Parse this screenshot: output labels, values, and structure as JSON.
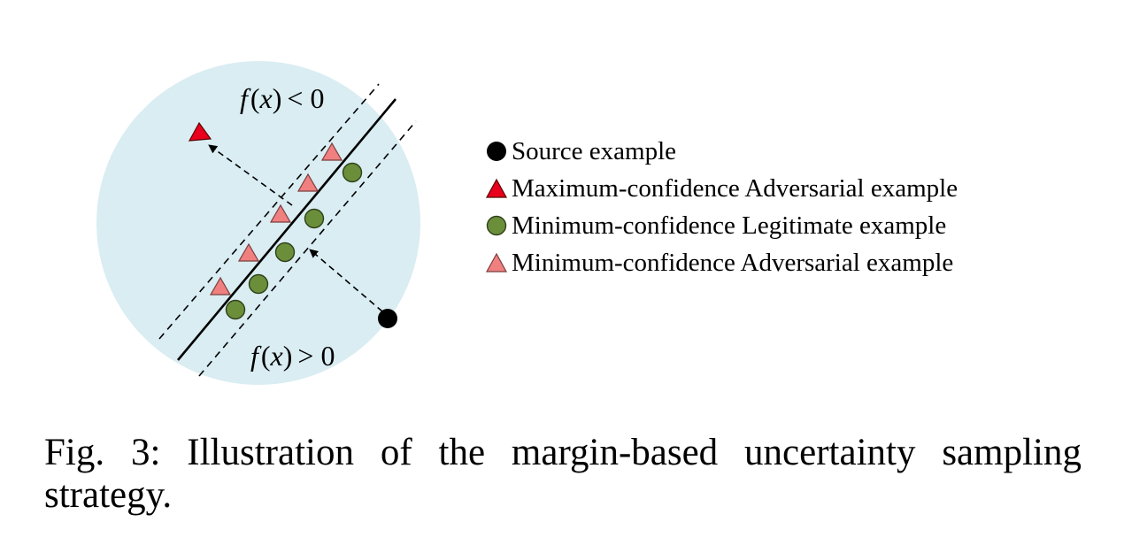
{
  "region_labels": {
    "upper": {
      "f": "f",
      "x": "x",
      "rel": "< 0"
    },
    "lower": {
      "f": "f",
      "x": "x",
      "rel": "> 0"
    }
  },
  "legend": [
    {
      "marker": "black-circle",
      "label": "Source example",
      "color": "#000000"
    },
    {
      "marker": "red-triangle",
      "label": "Maximum-confidence Adversarial example",
      "color": "#e8001c"
    },
    {
      "marker": "green-circle",
      "label": "Minimum-confidence Legitimate example",
      "color": "#6b8e3a"
    },
    {
      "marker": "pink-triangle",
      "label": "Minimum-confidence Adversarial example",
      "color": "#f08080"
    }
  ],
  "colors": {
    "circle_background": "#d9edf2",
    "boundary": "#000000"
  },
  "caption": "Fig. 3: Illustration of the margin-based uncertainty sampling strategy."
}
